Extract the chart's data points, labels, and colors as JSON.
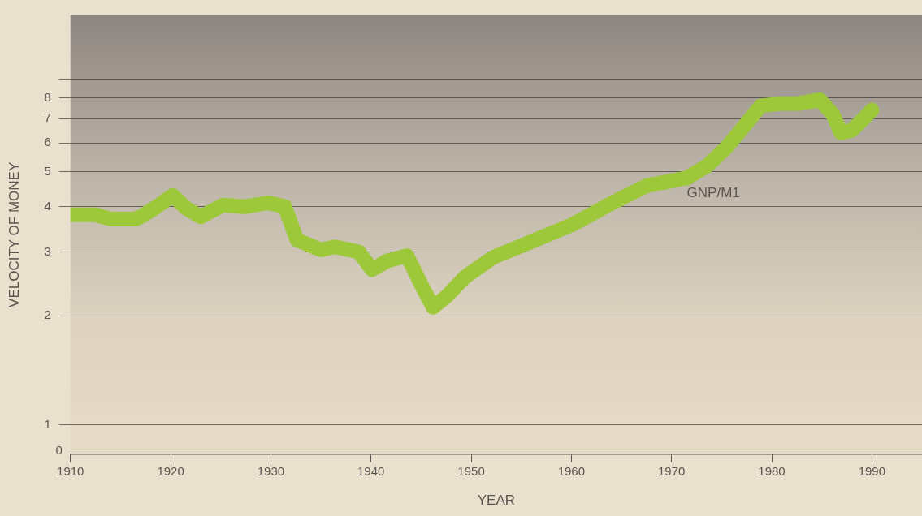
{
  "chart_data": {
    "type": "line",
    "xlabel": "YEAR",
    "ylabel": "VELOCITY OF MONEY",
    "log": "y",
    "grid": "y",
    "legend": false,
    "marker": "none",
    "line_style": "solid",
    "xlim": [
      1910,
      1995
    ],
    "xticks": [
      1910,
      1920,
      1930,
      1940,
      1950,
      1960,
      1970,
      1980,
      1990
    ],
    "ylim": [
      0.83,
      13.5
    ],
    "yticks": [
      1,
      2,
      3,
      4,
      5,
      6,
      7,
      8,
      {
        "value": 9,
        "label": null
      }
    ],
    "annotations": [
      "0"
    ],
    "x": [
      1910,
      1912.5,
      1914,
      1916.5,
      1917,
      1918.6,
      1920.2,
      1921.5,
      1923,
      1925.2,
      1927.4,
      1929.8,
      1931.4,
      1932.6,
      1935,
      1936.4,
      1938.8,
      1940.1,
      1941.7,
      1943.6,
      1945.2,
      1946.2,
      1947.6,
      1949.4,
      1952.1,
      1956.1,
      1960.1,
      1964.1,
      1967.5,
      1971.5,
      1973.6,
      1975.5,
      1977.3,
      1978.9,
      1980.8,
      1982.6,
      1984.8,
      1986.1,
      1986.9,
      1988,
      1989.6,
      1990
    ],
    "series": [
      {
        "name": "GNP/M1",
        "color": "#9cc83a",
        "values": [
          3.8,
          3.8,
          3.7,
          3.7,
          3.75,
          4.0,
          4.3,
          3.97,
          3.75,
          4.04,
          4.0,
          4.1,
          4.0,
          3.24,
          3.04,
          3.1,
          3.0,
          2.68,
          2.84,
          2.93,
          2.38,
          2.11,
          2.27,
          2.56,
          2.89,
          3.21,
          3.57,
          4.1,
          4.57,
          4.8,
          5.2,
          5.84,
          6.7,
          7.6,
          7.7,
          7.7,
          7.9,
          7.2,
          6.4,
          6.5,
          7.2,
          7.4
        ]
      }
    ]
  }
}
